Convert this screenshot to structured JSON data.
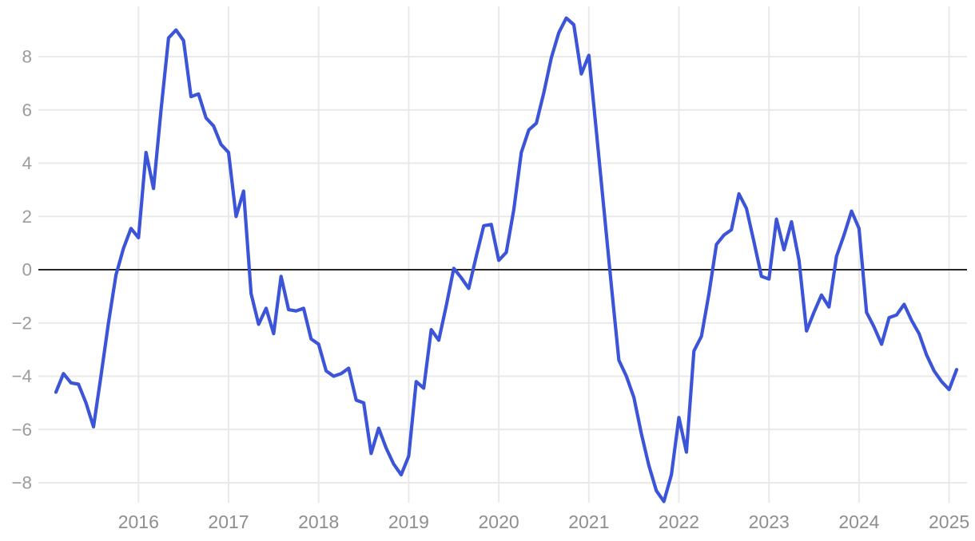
{
  "chart_data": {
    "type": "line",
    "title": "",
    "xlabel": "",
    "ylabel": "",
    "legend": false,
    "grid": true,
    "zero_line": true,
    "frequency": "monthly",
    "x": [
      "2015-02",
      "2015-03",
      "2015-04",
      "2015-05",
      "2015-06",
      "2015-07",
      "2015-08",
      "2015-09",
      "2015-10",
      "2015-11",
      "2015-12",
      "2016-01",
      "2016-02",
      "2016-03",
      "2016-04",
      "2016-05",
      "2016-06",
      "2016-07",
      "2016-08",
      "2016-09",
      "2016-10",
      "2016-11",
      "2016-12",
      "2017-01",
      "2017-02",
      "2017-03",
      "2017-04",
      "2017-05",
      "2017-06",
      "2017-07",
      "2017-08",
      "2017-09",
      "2017-10",
      "2017-11",
      "2017-12",
      "2018-01",
      "2018-02",
      "2018-03",
      "2018-04",
      "2018-05",
      "2018-06",
      "2018-07",
      "2018-08",
      "2018-09",
      "2018-10",
      "2018-11",
      "2018-12",
      "2019-01",
      "2019-02",
      "2019-03",
      "2019-04",
      "2019-05",
      "2019-06",
      "2019-07",
      "2019-08",
      "2019-09",
      "2019-10",
      "2019-11",
      "2019-12",
      "2020-01",
      "2020-02",
      "2020-03",
      "2020-04",
      "2020-05",
      "2020-06",
      "2020-07",
      "2020-08",
      "2020-09",
      "2020-10",
      "2020-11",
      "2020-12",
      "2021-01",
      "2021-02",
      "2021-03",
      "2021-04",
      "2021-05",
      "2021-06",
      "2021-07",
      "2021-08",
      "2021-09",
      "2021-10",
      "2021-11",
      "2021-12",
      "2022-01",
      "2022-02",
      "2022-03",
      "2022-04",
      "2022-05",
      "2022-06",
      "2022-07",
      "2022-08",
      "2022-09",
      "2022-10",
      "2022-11",
      "2022-12",
      "2023-01",
      "2023-02",
      "2023-03",
      "2023-04",
      "2023-05",
      "2023-06",
      "2023-07",
      "2023-08",
      "2023-09",
      "2023-10",
      "2023-11",
      "2023-12",
      "2024-01",
      "2024-02",
      "2024-03",
      "2024-04",
      "2024-05",
      "2024-06",
      "2024-07",
      "2024-08",
      "2024-09",
      "2024-10",
      "2024-11",
      "2024-12",
      "2025-01",
      "2025-02"
    ],
    "values": [
      -4.6,
      -3.9,
      -4.25,
      -4.3,
      -5.0,
      -5.9,
      -4.0,
      -2.0,
      -0.2,
      0.8,
      1.55,
      1.2,
      4.4,
      3.05,
      6.0,
      8.7,
      9.0,
      8.6,
      6.5,
      6.6,
      5.7,
      5.4,
      4.7,
      4.4,
      2.0,
      2.95,
      -0.9,
      -2.05,
      -1.45,
      -2.4,
      -0.25,
      -1.5,
      -1.55,
      -1.45,
      -2.6,
      -2.8,
      -3.8,
      -4.0,
      -3.9,
      -3.7,
      -4.9,
      -5.0,
      -6.9,
      -5.95,
      -6.7,
      -7.3,
      -7.7,
      -7.0,
      -4.2,
      -4.45,
      -2.25,
      -2.65,
      -1.35,
      0.05,
      -0.3,
      -0.7,
      0.5,
      1.65,
      1.7,
      0.35,
      0.65,
      2.25,
      4.4,
      5.25,
      5.5,
      6.65,
      7.95,
      8.9,
      9.45,
      9.2,
      7.35,
      8.05,
      5.2,
      2.3,
      -0.6,
      -3.4,
      -4.0,
      -4.8,
      -6.15,
      -7.35,
      -8.3,
      -8.7,
      -7.7,
      -5.55,
      -6.85,
      -3.05,
      -2.5,
      -0.9,
      0.95,
      1.3,
      1.5,
      2.85,
      2.3,
      1.05,
      -0.25,
      -0.35,
      1.9,
      0.75,
      1.8,
      0.35,
      -2.3,
      -1.6,
      -0.95,
      -1.4,
      0.5,
      1.3,
      2.2,
      1.55,
      -1.6,
      -2.15,
      -2.8,
      -1.8,
      -1.7,
      -1.3,
      -1.9,
      -2.4,
      -3.2,
      -3.8,
      -4.2,
      -4.5,
      -3.75
    ],
    "y_ticks": [
      {
        "value": 8,
        "label": "8"
      },
      {
        "value": 6,
        "label": "6"
      },
      {
        "value": 4,
        "label": "4"
      },
      {
        "value": 2,
        "label": "2"
      },
      {
        "value": 0,
        "label": "0"
      },
      {
        "value": -2,
        "label": "−2"
      },
      {
        "value": -4,
        "label": "−4"
      },
      {
        "value": -6,
        "label": "−6"
      },
      {
        "value": -8,
        "label": "−8"
      }
    ],
    "x_ticks": [
      {
        "year": 2016,
        "label": "2016"
      },
      {
        "year": 2017,
        "label": "2017"
      },
      {
        "year": 2018,
        "label": "2018"
      },
      {
        "year": 2019,
        "label": "2019"
      },
      {
        "year": 2020,
        "label": "2020"
      },
      {
        "year": 2021,
        "label": "2021"
      },
      {
        "year": 2022,
        "label": "2022"
      },
      {
        "year": 2023,
        "label": "2023"
      },
      {
        "year": 2024,
        "label": "2024"
      },
      {
        "year": 2025,
        "label": "2025"
      },
      {
        "year": 2026,
        "label": ""
      }
    ],
    "ylim": [
      -9.85,
      9.9
    ],
    "colors": {
      "line": "#3B54D8",
      "grid": "#E9E9E9",
      "zero_line": "#262626",
      "y_tick_label": "#9C9C9C",
      "x_tick_label": "#8E8E8E",
      "background": "#FFFFFF"
    }
  }
}
